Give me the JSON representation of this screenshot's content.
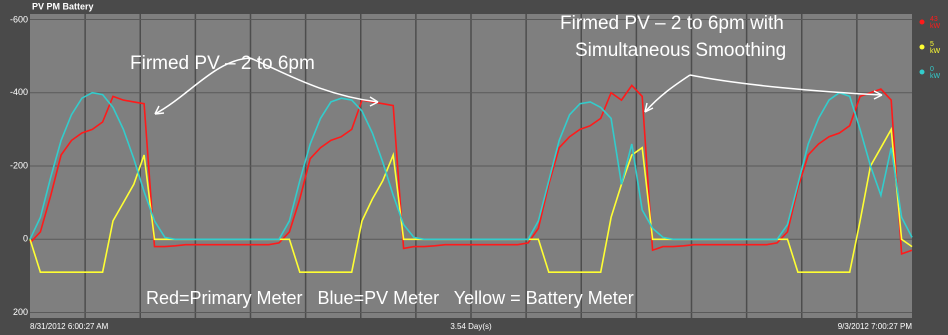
{
  "chart_data": {
    "type": "line",
    "title": "PV PM Battery",
    "categories": [
      "8/31/2012 6:00:27 AM",
      null,
      null,
      null,
      null,
      null,
      null,
      null,
      null,
      null,
      null,
      null,
      null,
      null,
      null,
      null,
      null,
      null,
      null,
      null,
      null,
      null,
      null,
      null,
      null,
      null,
      null,
      null,
      null,
      null,
      null,
      null,
      null,
      null,
      null,
      null,
      null,
      null,
      null,
      null,
      null,
      null,
      null,
      null,
      null,
      null,
      null,
      null,
      null,
      null,
      null,
      null,
      null,
      null,
      null,
      null,
      null,
      null,
      null,
      null,
      null,
      null,
      null,
      null,
      null,
      null,
      null,
      null,
      null,
      null,
      null,
      null,
      null,
      null,
      null,
      null,
      null,
      null,
      null,
      null,
      null,
      null,
      null,
      null,
      null,
      "9/3/2012 7:00:27 PM"
    ],
    "xlabel": "3.54 Day(s)",
    "ylim": [
      215,
      -615
    ],
    "yticks": [
      -600,
      -400,
      -200,
      0,
      200
    ],
    "grid": true,
    "series": [
      {
        "color": "#ff1a1a",
        "legend": [
          "43",
          "kW"
        ],
        "values": [
          10,
          -20,
          -120,
          -230,
          -270,
          -290,
          -300,
          -320,
          -390,
          -380,
          -375,
          -370,
          20,
          20,
          18,
          15,
          15,
          15,
          15,
          15,
          15,
          15,
          15,
          15,
          10,
          -20,
          -110,
          -220,
          -250,
          -270,
          -280,
          -300,
          -380,
          -375,
          -370,
          -365,
          25,
          20,
          20,
          18,
          15,
          15,
          15,
          15,
          15,
          15,
          15,
          15,
          10,
          -30,
          -150,
          -250,
          -280,
          -300,
          -310,
          -330,
          -400,
          -380,
          -420,
          -390,
          30,
          20,
          20,
          18,
          15,
          15,
          15,
          15,
          15,
          15,
          15,
          15,
          10,
          -20,
          -140,
          -230,
          -260,
          -280,
          -290,
          -310,
          -390,
          -400,
          -410,
          -380,
          40,
          30
        ]
      },
      {
        "color": "#ffff33",
        "legend": [
          "5",
          "kW"
        ],
        "values": [
          0,
          90,
          90,
          90,
          90,
          90,
          90,
          90,
          -50,
          -100,
          -150,
          -230,
          0,
          0,
          0,
          0,
          0,
          0,
          0,
          0,
          0,
          0,
          0,
          0,
          0,
          0,
          90,
          90,
          90,
          90,
          90,
          90,
          -50,
          -110,
          -160,
          -230,
          0,
          0,
          0,
          0,
          0,
          0,
          0,
          0,
          0,
          0,
          0,
          0,
          0,
          0,
          90,
          90,
          90,
          90,
          90,
          90,
          -60,
          -150,
          -230,
          -250,
          0,
          0,
          0,
          0,
          0,
          0,
          0,
          0,
          0,
          0,
          0,
          0,
          0,
          0,
          90,
          90,
          90,
          90,
          90,
          90,
          -50,
          -200,
          -250,
          -300,
          0,
          20
        ]
      },
      {
        "color": "#33cccc",
        "legend": [
          "0",
          "kW"
        ],
        "values": [
          0,
          -60,
          -170,
          -270,
          -340,
          -385,
          -400,
          -395,
          -360,
          -300,
          -220,
          -130,
          -50,
          -5,
          0,
          0,
          0,
          0,
          0,
          0,
          0,
          0,
          0,
          0,
          0,
          -50,
          -160,
          -260,
          -330,
          -375,
          -385,
          -380,
          -350,
          -290,
          -210,
          -120,
          -40,
          -5,
          0,
          0,
          0,
          0,
          0,
          0,
          0,
          0,
          0,
          0,
          0,
          -50,
          -160,
          -270,
          -340,
          -370,
          -375,
          -360,
          -330,
          -150,
          -260,
          -80,
          -30,
          -5,
          0,
          0,
          0,
          0,
          0,
          0,
          0,
          0,
          0,
          0,
          0,
          -40,
          -150,
          -260,
          -330,
          -380,
          -400,
          -390,
          -300,
          -200,
          -120,
          -250,
          -60,
          -5
        ]
      }
    ],
    "annotations": [
      "Firmed PV – 2 to 6pm",
      "Firmed PV – 2 to 6pm with",
      "Simultaneous Smoothing",
      "Red=Primary Meter   Blue=PV Meter   Yellow = Battery Meter"
    ]
  }
}
